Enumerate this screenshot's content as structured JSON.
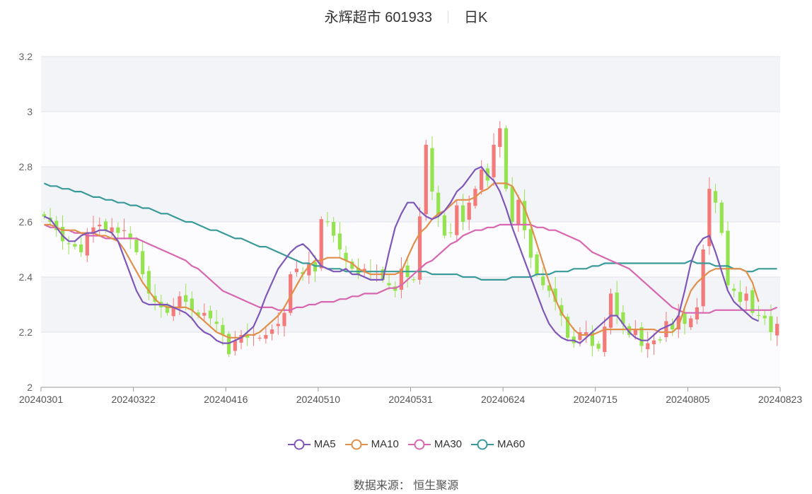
{
  "title": {
    "name": "永辉超市 601933",
    "period": "日K"
  },
  "source": "数据来源： 恒生聚源",
  "chart_data": {
    "type": "candlestick",
    "ylim": [
      2,
      3.2
    ],
    "yticks": [
      "2",
      "2.2",
      "2.4",
      "2.6",
      "2.8",
      "3",
      "3.2"
    ],
    "xticks": [
      "20240301",
      "20240322",
      "20240416",
      "20240510",
      "20240531",
      "20240624",
      "20240715",
      "20240805",
      "20240823"
    ],
    "xtick_index": [
      0,
      15,
      30,
      45,
      60,
      75,
      90,
      105,
      119
    ],
    "colors": {
      "up": "#f47a7a",
      "down": "#95e44f",
      "MA5": "#7e57b8",
      "MA10": "#e0904a",
      "MA30": "#d866b0",
      "MA60": "#3a9a9a"
    },
    "legend": [
      {
        "name": "MA5",
        "color": "#7e57b8"
      },
      {
        "name": "MA10",
        "color": "#e0904a"
      },
      {
        "name": "MA30",
        "color": "#d866b0"
      },
      {
        "name": "MA60",
        "color": "#3a9a9a"
      }
    ],
    "close": [
      2.62,
      2.6,
      2.57,
      2.53,
      2.52,
      2.51,
      2.49,
      2.56,
      2.58,
      2.59,
      2.57,
      2.58,
      2.56,
      2.57,
      2.54,
      2.49,
      2.41,
      2.34,
      2.31,
      2.29,
      2.27,
      2.29,
      2.33,
      2.31,
      2.28,
      2.26,
      2.27,
      2.25,
      2.23,
      2.19,
      2.12,
      2.17,
      2.19,
      2.18,
      2.19,
      2.18,
      2.19,
      2.21,
      2.23,
      2.27,
      2.41,
      2.43,
      2.41,
      2.45,
      2.42,
      2.61,
      2.6,
      2.55,
      2.5,
      2.46,
      2.43,
      2.41,
      2.43,
      2.42,
      2.42,
      2.39,
      2.37,
      2.35,
      2.43,
      2.4,
      2.39,
      2.62,
      2.88,
      2.71,
      2.62,
      2.55,
      2.56,
      2.66,
      2.6,
      2.67,
      2.72,
      2.79,
      2.75,
      2.88,
      2.94,
      2.72,
      2.6,
      2.68,
      2.57,
      2.47,
      2.41,
      2.37,
      2.35,
      2.31,
      2.26,
      2.18,
      2.16,
      2.2,
      2.2,
      2.15,
      2.14,
      2.22,
      2.34,
      2.26,
      2.23,
      2.19,
      2.21,
      2.15,
      2.16,
      2.17,
      2.17,
      2.24,
      2.21,
      2.26,
      2.23,
      2.25,
      2.29,
      2.5,
      2.72,
      2.67,
      2.56,
      2.37,
      2.35,
      2.31,
      2.34,
      2.27,
      2.26,
      2.25,
      2.2,
      2.23
    ],
    "ma5": [
      2.62,
      2.61,
      2.58,
      2.55,
      2.53,
      2.53,
      2.55,
      2.56,
      2.56,
      2.57,
      2.57,
      2.56,
      2.53,
      2.47,
      2.41,
      2.35,
      2.31,
      2.3,
      2.3,
      2.3,
      2.3,
      2.29,
      2.28,
      2.27,
      2.25,
      2.22,
      2.2,
      2.19,
      2.17,
      2.16,
      2.16,
      2.17,
      2.18,
      2.2,
      2.22,
      2.27,
      2.33,
      2.38,
      2.43,
      2.46,
      2.49,
      2.51,
      2.52,
      2.5,
      2.47,
      2.44,
      2.43,
      2.42,
      2.42,
      2.43,
      2.41,
      2.41,
      2.4,
      2.39,
      2.39,
      2.39,
      2.49,
      2.58,
      2.63,
      2.67,
      2.67,
      2.64,
      2.62,
      2.61,
      2.62,
      2.64,
      2.67,
      2.71,
      2.73,
      2.76,
      2.79,
      2.8,
      2.77,
      2.75,
      2.71,
      2.65,
      2.58,
      2.52,
      2.46,
      2.4,
      2.34,
      2.28,
      2.23,
      2.2,
      2.18,
      2.17,
      2.17,
      2.16,
      2.18,
      2.2,
      2.22,
      2.24,
      2.26,
      2.26,
      2.23,
      2.2,
      2.18,
      2.17,
      2.17,
      2.19,
      2.21,
      2.22,
      2.23,
      2.26,
      2.35,
      2.45,
      2.51,
      2.54,
      2.55,
      2.49,
      2.42,
      2.35,
      2.31,
      2.29,
      2.27,
      2.25,
      2.24
    ],
    "ma10": [
      2.59,
      2.59,
      2.58,
      2.57,
      2.57,
      2.57,
      2.56,
      2.56,
      2.56,
      2.55,
      2.55,
      2.54,
      2.53,
      2.5,
      2.46,
      2.42,
      2.38,
      2.35,
      2.32,
      2.3,
      2.29,
      2.29,
      2.29,
      2.29,
      2.28,
      2.26,
      2.24,
      2.22,
      2.2,
      2.19,
      2.18,
      2.18,
      2.18,
      2.19,
      2.19,
      2.2,
      2.22,
      2.24,
      2.26,
      2.29,
      2.33,
      2.37,
      2.41,
      2.44,
      2.46,
      2.46,
      2.47,
      2.47,
      2.47,
      2.46,
      2.45,
      2.43,
      2.42,
      2.41,
      2.41,
      2.41,
      2.41,
      2.41,
      2.42,
      2.47,
      2.52,
      2.56,
      2.58,
      2.61,
      2.63,
      2.64,
      2.66,
      2.68,
      2.68,
      2.68,
      2.69,
      2.71,
      2.72,
      2.74,
      2.74,
      2.74,
      2.73,
      2.69,
      2.65,
      2.59,
      2.52,
      2.45,
      2.38,
      2.32,
      2.27,
      2.24,
      2.21,
      2.19,
      2.19,
      2.19,
      2.2,
      2.21,
      2.21,
      2.21,
      2.21,
      2.21,
      2.21,
      2.21,
      2.21,
      2.21,
      2.2,
      2.2,
      2.2,
      2.22,
      2.29,
      2.35,
      2.38,
      2.4,
      2.42,
      2.43,
      2.43,
      2.43,
      2.43,
      2.43,
      2.42,
      2.38,
      2.31
    ],
    "ma30": [
      2.59,
      2.58,
      2.58,
      2.57,
      2.57,
      2.56,
      2.56,
      2.55,
      2.55,
      2.55,
      2.54,
      2.54,
      2.54,
      2.54,
      2.54,
      2.54,
      2.53,
      2.52,
      2.51,
      2.5,
      2.49,
      2.48,
      2.47,
      2.46,
      2.44,
      2.43,
      2.41,
      2.39,
      2.37,
      2.35,
      2.34,
      2.33,
      2.32,
      2.31,
      2.3,
      2.29,
      2.29,
      2.29,
      2.28,
      2.28,
      2.28,
      2.29,
      2.29,
      2.3,
      2.3,
      2.31,
      2.31,
      2.31,
      2.32,
      2.32,
      2.33,
      2.33,
      2.34,
      2.34,
      2.34,
      2.35,
      2.36,
      2.36,
      2.37,
      2.39,
      2.41,
      2.43,
      2.45,
      2.46,
      2.48,
      2.5,
      2.52,
      2.53,
      2.55,
      2.56,
      2.57,
      2.57,
      2.58,
      2.58,
      2.59,
      2.59,
      2.59,
      2.59,
      2.59,
      2.59,
      2.58,
      2.58,
      2.57,
      2.57,
      2.56,
      2.55,
      2.54,
      2.53,
      2.51,
      2.49,
      2.48,
      2.47,
      2.46,
      2.45,
      2.44,
      2.43,
      2.41,
      2.39,
      2.37,
      2.35,
      2.33,
      2.31,
      2.29,
      2.28,
      2.27,
      2.27,
      2.27,
      2.27,
      2.27,
      2.28,
      2.28,
      2.28,
      2.28,
      2.28,
      2.28,
      2.28,
      2.28,
      2.28,
      2.28,
      2.29
    ],
    "ma60": [
      2.74,
      2.73,
      2.73,
      2.72,
      2.72,
      2.71,
      2.71,
      2.7,
      2.69,
      2.69,
      2.68,
      2.68,
      2.67,
      2.67,
      2.66,
      2.66,
      2.65,
      2.65,
      2.64,
      2.63,
      2.63,
      2.62,
      2.61,
      2.6,
      2.6,
      2.59,
      2.58,
      2.57,
      2.57,
      2.56,
      2.55,
      2.54,
      2.54,
      2.53,
      2.52,
      2.51,
      2.51,
      2.5,
      2.49,
      2.48,
      2.47,
      2.46,
      2.45,
      2.45,
      2.44,
      2.44,
      2.43,
      2.43,
      2.43,
      2.42,
      2.42,
      2.42,
      2.42,
      2.42,
      2.42,
      2.42,
      2.42,
      2.42,
      2.42,
      2.42,
      2.42,
      2.42,
      2.42,
      2.41,
      2.41,
      2.41,
      2.41,
      2.41,
      2.4,
      2.4,
      2.4,
      2.39,
      2.39,
      2.39,
      2.39,
      2.39,
      2.4,
      2.4,
      2.4,
      2.4,
      2.41,
      2.41,
      2.41,
      2.42,
      2.42,
      2.42,
      2.43,
      2.43,
      2.43,
      2.44,
      2.44,
      2.45,
      2.45,
      2.45,
      2.45,
      2.45,
      2.45,
      2.45,
      2.45,
      2.45,
      2.45,
      2.45,
      2.45,
      2.45,
      2.45,
      2.46,
      2.45,
      2.45,
      2.45,
      2.44,
      2.44,
      2.44,
      2.43,
      2.43,
      2.42,
      2.42,
      2.43,
      2.43,
      2.43,
      2.43
    ]
  }
}
